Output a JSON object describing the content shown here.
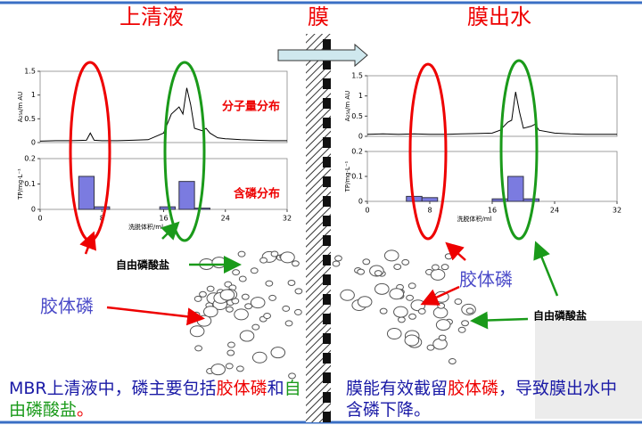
{
  "titles": {
    "left": "上清液",
    "middle": "膜",
    "right": "膜出水"
  },
  "labels": {
    "free_left": "自由磷酸盐",
    "colloid_left": "胶体磷",
    "colloid_right": "胶体磷",
    "free_right": "自由磷酸盐"
  },
  "caption_left": [
    "MBR上清液中，磷主要包括",
    "胶体磷",
    "和",
    "自由磷酸盐",
    "。"
  ],
  "caption_right": [
    "膜能有效截留",
    "胶体磷",
    "，导致膜出水中含磷下降。"
  ],
  "chart_data": [
    {
      "type": "line",
      "annotation": "分子量分布",
      "y_label": "A₂₅₄/m AU",
      "color": "#000000",
      "x": [
        0,
        2,
        4,
        6,
        6.5,
        7,
        8,
        10,
        12,
        14,
        16,
        17,
        18,
        18.5,
        19,
        19.5,
        20,
        21,
        21.5,
        22,
        23,
        24,
        26,
        28,
        30,
        32
      ],
      "values": [
        0.03,
        0.04,
        0.04,
        0.05,
        0.2,
        0.05,
        0.04,
        0.04,
        0.05,
        0.06,
        0.2,
        0.6,
        0.75,
        0.6,
        1.15,
        0.8,
        0.3,
        0.25,
        0.3,
        0.2,
        0.1,
        0.08,
        0.06,
        0.05,
        0.04,
        0.04
      ],
      "xlim": [
        0,
        32
      ],
      "ylim": [
        0,
        1.5
      ],
      "yticks": [
        0,
        0.5,
        1,
        1.5
      ]
    },
    {
      "type": "bar",
      "annotation": "含磷分布",
      "y_label": "TP/mg·L⁻¹",
      "x_label": "洗脱体积/ml",
      "color": "#7b7be0",
      "x": [
        6,
        8,
        16.5,
        19,
        21
      ],
      "values": [
        0.13,
        0.01,
        0.01,
        0.11,
        0.005
      ],
      "xlim": [
        0,
        32
      ],
      "ylim": [
        0,
        0.2
      ],
      "xticks": [
        0,
        8,
        16,
        24,
        32
      ],
      "yticks": [
        0,
        0.1,
        0.2
      ]
    },
    {
      "type": "line",
      "y_label": "A₂₅₄/m AU",
      "color": "#000000",
      "x": [
        0,
        2,
        4,
        6,
        8,
        10,
        12,
        14,
        16,
        17,
        18,
        18.5,
        19,
        19.5,
        20,
        21,
        21.5,
        22,
        24,
        26,
        28,
        30,
        32
      ],
      "values": [
        0.05,
        0.06,
        0.05,
        0.06,
        0.05,
        0.05,
        0.06,
        0.07,
        0.08,
        0.15,
        0.35,
        0.4,
        1.1,
        0.6,
        0.2,
        0.25,
        0.3,
        0.15,
        0.08,
        0.06,
        0.05,
        0.05,
        0.05
      ],
      "xlim": [
        0,
        32
      ],
      "ylim": [
        0,
        1.5
      ],
      "yticks": [
        0,
        0.5,
        1,
        1.5
      ]
    },
    {
      "type": "bar",
      "y_label": "TP/mg·L⁻¹",
      "x_label": "洗脱体积/ml",
      "color": "#7b7be0",
      "x": [
        6,
        8,
        17,
        19,
        21
      ],
      "values": [
        0.02,
        0.015,
        0.01,
        0.1,
        0.01
      ],
      "xlim": [
        0,
        32
      ],
      "ylim": [
        0,
        0.2
      ],
      "xticks": [
        0,
        8,
        16,
        24,
        32
      ],
      "yticks": [
        0,
        0.1,
        0.2
      ]
    }
  ]
}
